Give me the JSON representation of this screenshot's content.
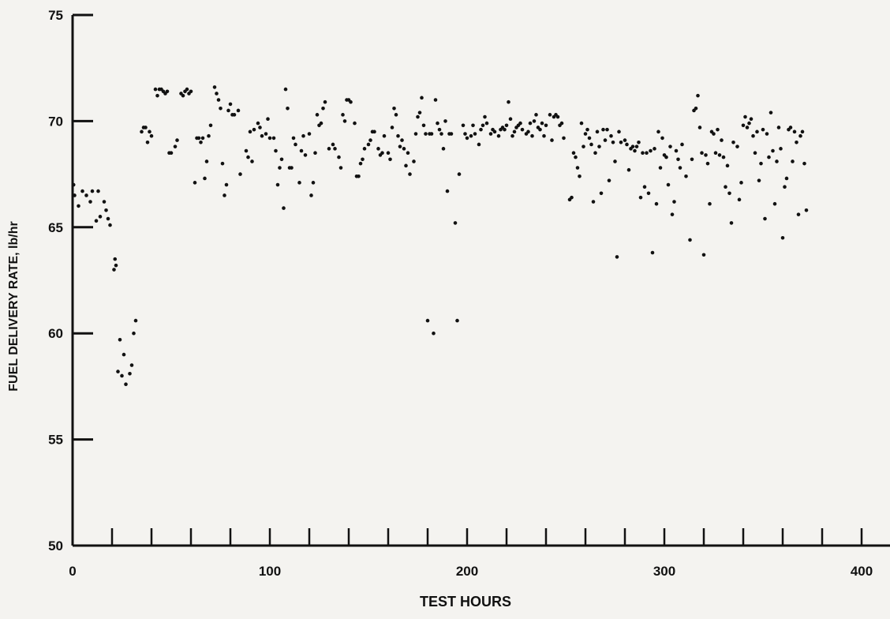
{
  "chart_data": {
    "type": "scatter",
    "title": "",
    "xlabel": "TEST HOURS",
    "ylabel": "FUEL DELIVERY RATE, lb/hr",
    "xlim": [
      0,
      415
    ],
    "ylim": [
      50,
      75
    ],
    "xticks": [
      0,
      100,
      200,
      300,
      400
    ],
    "yticks": [
      50,
      55,
      60,
      65,
      70,
      75
    ],
    "x_minor_tick_step": 10,
    "grid": false,
    "legend": "none",
    "marker_color": "#111111",
    "points": [
      [
        0.5,
        67.0
      ],
      [
        1,
        66.5
      ],
      [
        3,
        66.0
      ],
      [
        5,
        66.7
      ],
      [
        7,
        66.5
      ],
      [
        9,
        66.2
      ],
      [
        10,
        66.7
      ],
      [
        12,
        65.3
      ],
      [
        13,
        66.7
      ],
      [
        14,
        65.5
      ],
      [
        16,
        66.2
      ],
      [
        17,
        65.8
      ],
      [
        18,
        65.4
      ],
      [
        19,
        65.1
      ],
      [
        21,
        63.0
      ],
      [
        21.5,
        63.5
      ],
      [
        22,
        63.2
      ],
      [
        23,
        58.2
      ],
      [
        24,
        59.7
      ],
      [
        25,
        58.0
      ],
      [
        26,
        59.0
      ],
      [
        27,
        57.6
      ],
      [
        29,
        58.1
      ],
      [
        30,
        58.5
      ],
      [
        31,
        60.0
      ],
      [
        32,
        60.6
      ],
      [
        35,
        69.5
      ],
      [
        36,
        69.7
      ],
      [
        37,
        69.7
      ],
      [
        38,
        69.0
      ],
      [
        39,
        69.5
      ],
      [
        40,
        69.3
      ],
      [
        42,
        71.5
      ],
      [
        43,
        71.2
      ],
      [
        44,
        71.5
      ],
      [
        45,
        71.5
      ],
      [
        46,
        71.4
      ],
      [
        47,
        71.3
      ],
      [
        48,
        71.4
      ],
      [
        49,
        68.5
      ],
      [
        50,
        68.5
      ],
      [
        52,
        68.8
      ],
      [
        53,
        69.1
      ],
      [
        55,
        71.3
      ],
      [
        56,
        71.2
      ],
      [
        57,
        71.4
      ],
      [
        58,
        71.5
      ],
      [
        59,
        71.3
      ],
      [
        60,
        71.4
      ],
      [
        62,
        67.1
      ],
      [
        63,
        69.2
      ],
      [
        64,
        69.2
      ],
      [
        65,
        69.0
      ],
      [
        66,
        69.2
      ],
      [
        67,
        67.3
      ],
      [
        68,
        68.1
      ],
      [
        69,
        69.3
      ],
      [
        70,
        69.8
      ],
      [
        72,
        71.6
      ],
      [
        73,
        71.3
      ],
      [
        74,
        71.0
      ],
      [
        75,
        70.6
      ],
      [
        76,
        68.0
      ],
      [
        77,
        66.5
      ],
      [
        78,
        67.0
      ],
      [
        79,
        70.5
      ],
      [
        80,
        70.8
      ],
      [
        81,
        70.3
      ],
      [
        82,
        70.3
      ],
      [
        84,
        70.5
      ],
      [
        85,
        67.5
      ],
      [
        88,
        68.6
      ],
      [
        89,
        68.3
      ],
      [
        90,
        69.5
      ],
      [
        91,
        68.1
      ],
      [
        92,
        69.6
      ],
      [
        94,
        69.9
      ],
      [
        95,
        69.7
      ],
      [
        96,
        69.3
      ],
      [
        98,
        69.4
      ],
      [
        99,
        70.1
      ],
      [
        100,
        69.2
      ],
      [
        102,
        69.2
      ],
      [
        103,
        68.6
      ],
      [
        104,
        67.0
      ],
      [
        105,
        67.8
      ],
      [
        106,
        68.2
      ],
      [
        107,
        65.9
      ],
      [
        108,
        71.5
      ],
      [
        109,
        70.6
      ],
      [
        110,
        67.8
      ],
      [
        111,
        67.8
      ],
      [
        112,
        69.2
      ],
      [
        113,
        68.9
      ],
      [
        115,
        67.1
      ],
      [
        116,
        68.6
      ],
      [
        117,
        69.3
      ],
      [
        118,
        68.4
      ],
      [
        120,
        69.4
      ],
      [
        121,
        66.5
      ],
      [
        122,
        67.1
      ],
      [
        123,
        68.5
      ],
      [
        124,
        70.3
      ],
      [
        125,
        69.8
      ],
      [
        126,
        69.9
      ],
      [
        127,
        70.6
      ],
      [
        128,
        70.9
      ],
      [
        130,
        68.7
      ],
      [
        132,
        68.9
      ],
      [
        133,
        68.7
      ],
      [
        135,
        68.3
      ],
      [
        136,
        67.8
      ],
      [
        137,
        70.3
      ],
      [
        138,
        70.0
      ],
      [
        139,
        71.0
      ],
      [
        140,
        71.0
      ],
      [
        141,
        70.9
      ],
      [
        143,
        69.9
      ],
      [
        144,
        67.4
      ],
      [
        145,
        67.4
      ],
      [
        146,
        68.0
      ],
      [
        147,
        68.2
      ],
      [
        148,
        68.7
      ],
      [
        150,
        68.9
      ],
      [
        151,
        69.1
      ],
      [
        152,
        69.5
      ],
      [
        153,
        69.5
      ],
      [
        155,
        68.7
      ],
      [
        156,
        68.4
      ],
      [
        157,
        68.5
      ],
      [
        158,
        69.3
      ],
      [
        160,
        68.5
      ],
      [
        161,
        68.2
      ],
      [
        162,
        69.7
      ],
      [
        163,
        70.6
      ],
      [
        164,
        70.3
      ],
      [
        165,
        69.3
      ],
      [
        166,
        68.8
      ],
      [
        167,
        69.1
      ],
      [
        168,
        68.7
      ],
      [
        169,
        67.9
      ],
      [
        170,
        68.5
      ],
      [
        171,
        67.5
      ],
      [
        173,
        68.1
      ],
      [
        174,
        69.4
      ],
      [
        175,
        70.2
      ],
      [
        176,
        70.4
      ],
      [
        177,
        71.1
      ],
      [
        178,
        69.8
      ],
      [
        179,
        69.4
      ],
      [
        180,
        60.6
      ],
      [
        181,
        69.4
      ],
      [
        182,
        69.4
      ],
      [
        183,
        60.0
      ],
      [
        184,
        71.0
      ],
      [
        185,
        69.9
      ],
      [
        186,
        69.6
      ],
      [
        187,
        69.4
      ],
      [
        188,
        68.7
      ],
      [
        189,
        70.0
      ],
      [
        190,
        66.7
      ],
      [
        191,
        69.4
      ],
      [
        192,
        69.4
      ],
      [
        194,
        65.2
      ],
      [
        195,
        60.6
      ],
      [
        196,
        67.5
      ],
      [
        198,
        69.8
      ],
      [
        199,
        69.4
      ],
      [
        200,
        69.2
      ],
      [
        202,
        69.3
      ],
      [
        203,
        69.8
      ],
      [
        204,
        69.4
      ],
      [
        206,
        68.9
      ],
      [
        207,
        69.6
      ],
      [
        208,
        69.8
      ],
      [
        209,
        70.2
      ],
      [
        210,
        69.9
      ],
      [
        212,
        69.4
      ],
      [
        213,
        69.6
      ],
      [
        214,
        69.5
      ],
      [
        216,
        69.3
      ],
      [
        217,
        69.6
      ],
      [
        218,
        69.7
      ],
      [
        219,
        69.6
      ],
      [
        220,
        69.8
      ],
      [
        221,
        70.9
      ],
      [
        222,
        70.1
      ],
      [
        223,
        69.3
      ],
      [
        224,
        69.5
      ],
      [
        225,
        69.7
      ],
      [
        226,
        69.8
      ],
      [
        227,
        69.9
      ],
      [
        228,
        69.6
      ],
      [
        230,
        69.4
      ],
      [
        231,
        69.5
      ],
      [
        232,
        69.9
      ],
      [
        233,
        69.3
      ],
      [
        234,
        70.0
      ],
      [
        235,
        70.3
      ],
      [
        236,
        69.7
      ],
      [
        237,
        69.6
      ],
      [
        238,
        69.9
      ],
      [
        239,
        69.3
      ],
      [
        240,
        69.8
      ],
      [
        242,
        70.3
      ],
      [
        243,
        69.1
      ],
      [
        244,
        70.2
      ],
      [
        245,
        70.3
      ],
      [
        246,
        70.2
      ],
      [
        247,
        69.8
      ],
      [
        248,
        69.9
      ],
      [
        249,
        69.2
      ],
      [
        252,
        66.3
      ],
      [
        253,
        66.4
      ],
      [
        254,
        68.5
      ],
      [
        255,
        68.3
      ],
      [
        256,
        67.8
      ],
      [
        257,
        67.4
      ],
      [
        258,
        69.9
      ],
      [
        259,
        68.8
      ],
      [
        260,
        69.4
      ],
      [
        261,
        69.6
      ],
      [
        262,
        69.2
      ],
      [
        263,
        68.9
      ],
      [
        264,
        66.2
      ],
      [
        265,
        68.5
      ],
      [
        266,
        69.5
      ],
      [
        267,
        68.8
      ],
      [
        268,
        66.6
      ],
      [
        269,
        69.6
      ],
      [
        270,
        69.1
      ],
      [
        271,
        69.6
      ],
      [
        272,
        67.2
      ],
      [
        273,
        69.3
      ],
      [
        274,
        69.0
      ],
      [
        275,
        68.1
      ],
      [
        276,
        63.6
      ],
      [
        277,
        69.5
      ],
      [
        278,
        69.0
      ],
      [
        280,
        69.1
      ],
      [
        281,
        68.9
      ],
      [
        282,
        67.7
      ],
      [
        283,
        68.7
      ],
      [
        284,
        68.8
      ],
      [
        285,
        68.6
      ],
      [
        286,
        68.8
      ],
      [
        287,
        69.0
      ],
      [
        288,
        66.4
      ],
      [
        289,
        68.5
      ],
      [
        290,
        66.9
      ],
      [
        291,
        68.5
      ],
      [
        292,
        66.6
      ],
      [
        293,
        68.6
      ],
      [
        294,
        63.8
      ],
      [
        295,
        68.7
      ],
      [
        296,
        66.1
      ],
      [
        297,
        69.5
      ],
      [
        298,
        67.8
      ],
      [
        299,
        69.2
      ],
      [
        300,
        68.4
      ],
      [
        301,
        68.3
      ],
      [
        302,
        67.0
      ],
      [
        303,
        68.8
      ],
      [
        304,
        65.6
      ],
      [
        305,
        66.2
      ],
      [
        306,
        68.6
      ],
      [
        307,
        68.2
      ],
      [
        308,
        67.8
      ],
      [
        309,
        68.9
      ],
      [
        311,
        67.4
      ],
      [
        313,
        64.4
      ],
      [
        314,
        68.2
      ],
      [
        315,
        70.5
      ],
      [
        316,
        70.6
      ],
      [
        317,
        71.2
      ],
      [
        318,
        69.7
      ],
      [
        319,
        68.5
      ],
      [
        320,
        63.7
      ],
      [
        321,
        68.4
      ],
      [
        322,
        68.0
      ],
      [
        323,
        66.1
      ],
      [
        324,
        69.5
      ],
      [
        325,
        69.4
      ],
      [
        326,
        68.5
      ],
      [
        327,
        69.6
      ],
      [
        328,
        68.4
      ],
      [
        329,
        69.1
      ],
      [
        330,
        68.3
      ],
      [
        331,
        66.9
      ],
      [
        332,
        67.9
      ],
      [
        333,
        66.6
      ],
      [
        334,
        65.2
      ],
      [
        335,
        69.0
      ],
      [
        337,
        68.8
      ],
      [
        338,
        66.3
      ],
      [
        339,
        67.1
      ],
      [
        340,
        69.8
      ],
      [
        341,
        70.2
      ],
      [
        342,
        69.7
      ],
      [
        343,
        69.9
      ],
      [
        344,
        70.1
      ],
      [
        345,
        69.3
      ],
      [
        346,
        68.5
      ],
      [
        347,
        69.5
      ],
      [
        348,
        67.2
      ],
      [
        349,
        68.0
      ],
      [
        350,
        69.6
      ],
      [
        351,
        65.4
      ],
      [
        352,
        69.4
      ],
      [
        353,
        68.3
      ],
      [
        354,
        70.4
      ],
      [
        355,
        68.6
      ],
      [
        356,
        66.1
      ],
      [
        357,
        68.1
      ],
      [
        358,
        69.7
      ],
      [
        359,
        68.7
      ],
      [
        360,
        64.5
      ],
      [
        361,
        66.9
      ],
      [
        362,
        67.3
      ],
      [
        363,
        69.6
      ],
      [
        364,
        69.7
      ],
      [
        365,
        68.1
      ],
      [
        366,
        69.5
      ],
      [
        367,
        69.0
      ],
      [
        368,
        65.6
      ],
      [
        369,
        69.3
      ],
      [
        370,
        69.5
      ],
      [
        371,
        68.0
      ],
      [
        372,
        65.8
      ]
    ]
  }
}
